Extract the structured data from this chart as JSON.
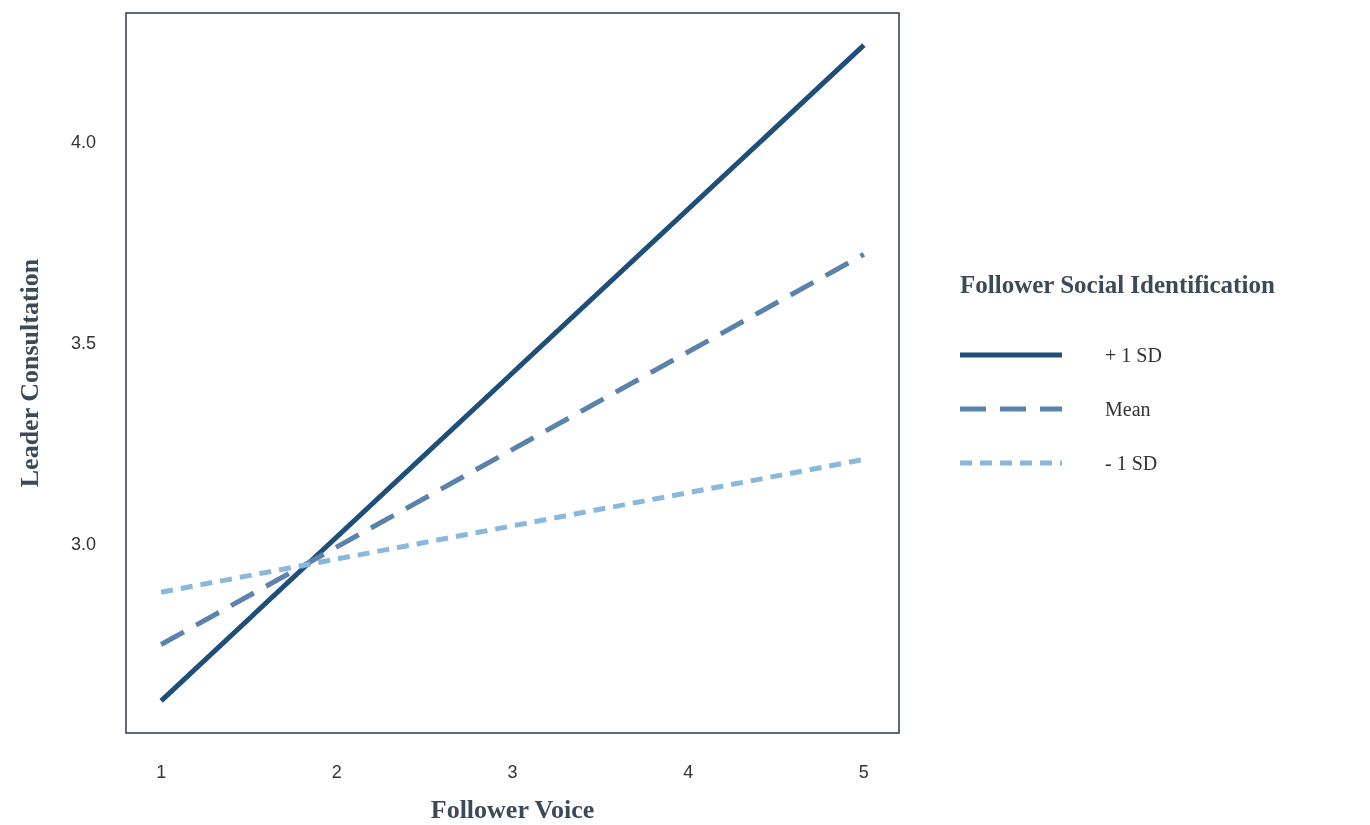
{
  "chart_data": {
    "type": "line",
    "xlabel": "Follower Voice",
    "ylabel": "Leader Consultation",
    "legend_title": "Follower Social Identification",
    "x": [
      1,
      5
    ],
    "series": [
      {
        "name": "+ 1 SD",
        "color": "#1f4e79",
        "values": [
          2.61,
          4.24
        ],
        "line_style": "solid"
      },
      {
        "name": "Mean",
        "color": "#5a82ab",
        "values": [
          2.75,
          3.72
        ],
        "line_style": "dashed"
      },
      {
        "name": "- 1 SD",
        "color": "#8ab8dc",
        "values": [
          2.88,
          3.21
        ],
        "line_style": "dotted"
      }
    ],
    "xlim": [
      0.8,
      5.2
    ],
    "ylim": [
      2.53,
      4.32
    ],
    "xticks": [
      1,
      2,
      3,
      4,
      5
    ],
    "yticks": [
      {
        "value": 3,
        "label": "3.0"
      },
      {
        "value": 3.5,
        "label": "3.5"
      },
      {
        "value": 4,
        "label": "4.0"
      }
    ],
    "legend": "right",
    "grid": false
  }
}
